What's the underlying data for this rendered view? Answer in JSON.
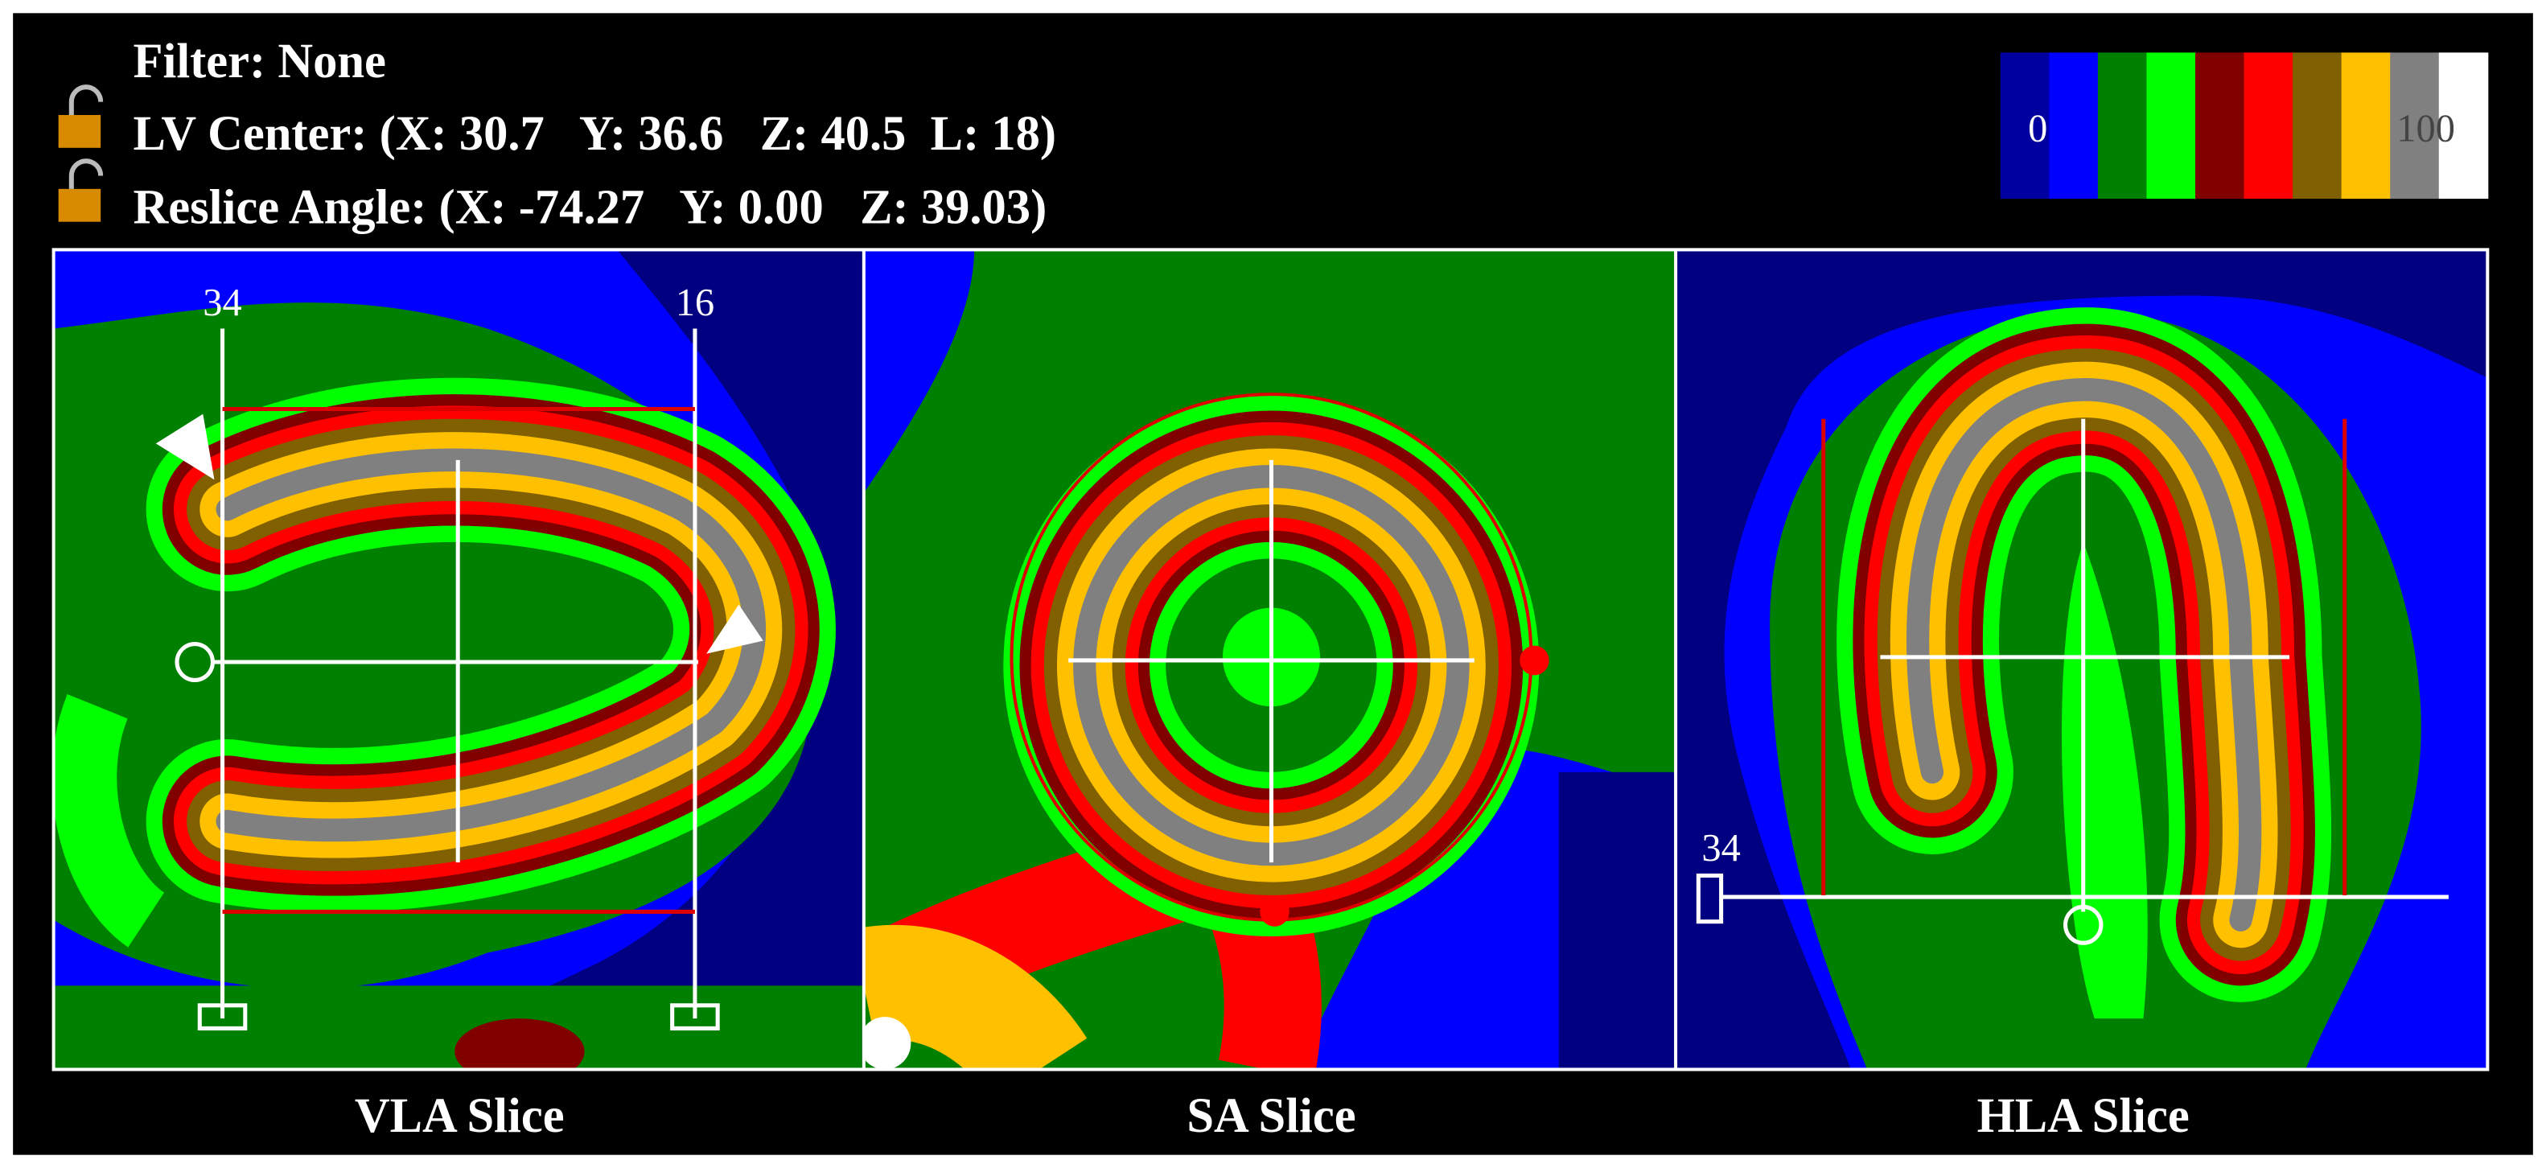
{
  "header": {
    "filter": "Filter: None",
    "lv_center": "LV Center: (X: 30.7   Y: 36.6   Z: 40.5  L: 18)",
    "reslice_angle": "Reslice Angle: (X: -74.27   Y: 0.00   Z: 39.03)"
  },
  "colorbar": {
    "min_label": "0",
    "max_label": "100"
  },
  "panels": [
    {
      "title": "VLA Slice",
      "markers": [
        "34",
        "16"
      ]
    },
    {
      "title": "SA Slice"
    },
    {
      "title": "HLA Slice",
      "markers": [
        "34"
      ]
    }
  ]
}
